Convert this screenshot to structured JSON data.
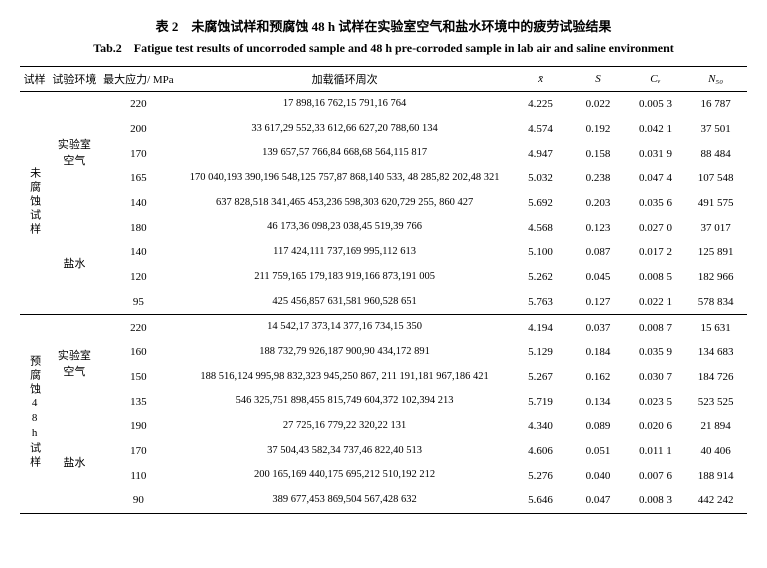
{
  "title_cn": "表 2　未腐蚀试样和预腐蚀 48 h 试样在实验室空气和盐水环境中的疲劳试验结果",
  "title_en": "Tab.2　Fatigue test results of uncorroded sample and 48 h pre-corroded sample in lab air and saline environment",
  "headers": {
    "sample": "试样",
    "env": "试验环境",
    "stress": "最大应力/ MPa",
    "cycles": "加载循环周次",
    "xbar": "x̄",
    "s": "S",
    "cv": "Cᵥ",
    "n50": "N₅₀"
  },
  "samples": {
    "uncorroded": "未腐蚀试样",
    "precorroded": "预腐蚀48h试样"
  },
  "envs": {
    "air": "实验室空气",
    "saline": "盐水"
  },
  "rows": [
    {
      "stress": "220",
      "cycles": "17 898,16 762,15 791,16 764",
      "xbar": "4.225",
      "s": "0.022",
      "cv": "0.005 3",
      "n50": "16 787"
    },
    {
      "stress": "200",
      "cycles": "33 617,29 552,33 612,66 627,20 788,60 134",
      "xbar": "4.574",
      "s": "0.192",
      "cv": "0.042 1",
      "n50": "37 501"
    },
    {
      "stress": "170",
      "cycles": "139 657,57 766,84 668,68 564,115 817",
      "xbar": "4.947",
      "s": "0.158",
      "cv": "0.031 9",
      "n50": "88 484"
    },
    {
      "stress": "165",
      "cycles": "170 040,193 390,196 548,125 757,87 868,140 533, 48 285,82 202,48 321",
      "xbar": "5.032",
      "s": "0.238",
      "cv": "0.047 4",
      "n50": "107 548"
    },
    {
      "stress": "140",
      "cycles": "637 828,518 341,465 453,236 598,303 620,729 255, 860 427",
      "xbar": "5.692",
      "s": "0.203",
      "cv": "0.035 6",
      "n50": "491 575"
    },
    {
      "stress": "180",
      "cycles": "46 173,36 098,23 038,45 519,39 766",
      "xbar": "4.568",
      "s": "0.123",
      "cv": "0.027 0",
      "n50": "37 017"
    },
    {
      "stress": "140",
      "cycles": "117 424,111 737,169 995,112 613",
      "xbar": "5.100",
      "s": "0.087",
      "cv": "0.017 2",
      "n50": "125 891"
    },
    {
      "stress": "120",
      "cycles": "211 759,165 179,183 919,166 873,191 005",
      "xbar": "5.262",
      "s": "0.045",
      "cv": "0.008 5",
      "n50": "182 966"
    },
    {
      "stress": "95",
      "cycles": "425 456,857 631,581 960,528 651",
      "xbar": "5.763",
      "s": "0.127",
      "cv": "0.022 1",
      "n50": "578 834"
    },
    {
      "stress": "220",
      "cycles": "14 542,17 373,14 377,16 734,15 350",
      "xbar": "4.194",
      "s": "0.037",
      "cv": "0.008 7",
      "n50": "15 631"
    },
    {
      "stress": "160",
      "cycles": "188 732,79 926,187 900,90 434,172 891",
      "xbar": "5.129",
      "s": "0.184",
      "cv": "0.035 9",
      "n50": "134 683"
    },
    {
      "stress": "150",
      "cycles": "188 516,124 995,98 832,323 945,250 867, 211 191,181 967,186 421",
      "xbar": "5.267",
      "s": "0.162",
      "cv": "0.030 7",
      "n50": "184 726"
    },
    {
      "stress": "135",
      "cycles": "546 325,751 898,455 815,749 604,372 102,394 213",
      "xbar": "5.719",
      "s": "0.134",
      "cv": "0.023 5",
      "n50": "523 525"
    },
    {
      "stress": "190",
      "cycles": "27 725,16 779,22 320,22 131",
      "xbar": "4.340",
      "s": "0.089",
      "cv": "0.020 6",
      "n50": "21 894"
    },
    {
      "stress": "170",
      "cycles": "37 504,43 582,34 737,46 822,40 513",
      "xbar": "4.606",
      "s": "0.051",
      "cv": "0.011 1",
      "n50": "40 406"
    },
    {
      "stress": "110",
      "cycles": "200 165,169 440,175 695,212 510,192 212",
      "xbar": "5.276",
      "s": "0.040",
      "cv": "0.007 6",
      "n50": "188 914"
    },
    {
      "stress": "90",
      "cycles": "389 677,453 869,504 567,428 632",
      "xbar": "5.646",
      "s": "0.047",
      "cv": "0.008 3",
      "n50": "442 242"
    }
  ]
}
